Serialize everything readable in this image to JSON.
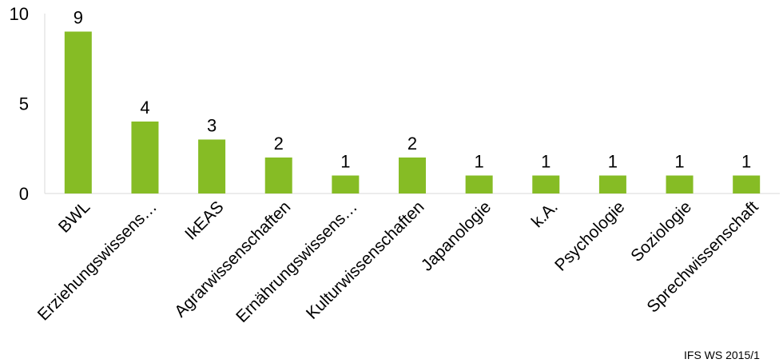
{
  "chart_data": {
    "type": "bar",
    "categories": [
      "BWL",
      "Erziehungswissens…",
      "IkEAS",
      "Agrarwissenschaften",
      "Ernährungswissens…",
      "Kulturwissenschaften",
      "Japanologie",
      "k.A.",
      "Psychologie",
      "Soziologie",
      "Sprechwissenschaft"
    ],
    "values": [
      9,
      4,
      3,
      2,
      1,
      2,
      1,
      1,
      1,
      1,
      1
    ],
    "ylim": [
      0,
      10
    ],
    "yticks": [
      0,
      5,
      10
    ],
    "bar_color": "#86bc25",
    "grid": false,
    "legend": "none"
  },
  "footer": {
    "text": "IFS WS 2015/1"
  }
}
